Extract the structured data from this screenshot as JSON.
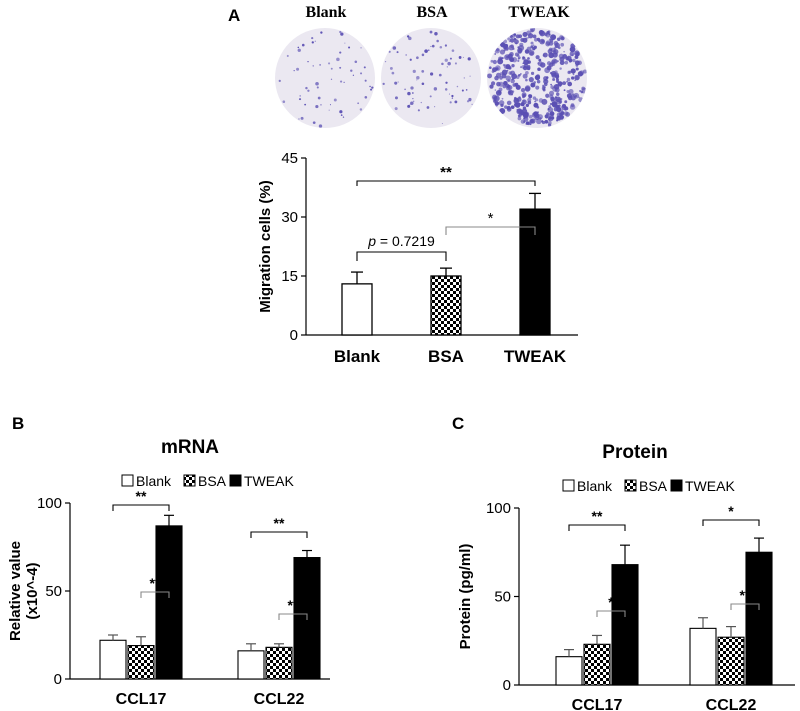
{
  "panels": {
    "a": {
      "letter": "A",
      "well_labels": [
        "Blank",
        "BSA",
        "TWEAK"
      ]
    },
    "b": {
      "letter": "B"
    },
    "c": {
      "letter": "C"
    }
  },
  "colors": {
    "bar_outline": "#000000",
    "blank_fill": "#ffffff",
    "tweak_fill": "#000000",
    "well_bg": "#ebe8f1",
    "stain": "#5a4fb3"
  },
  "chart_data": [
    {
      "type": "bar",
      "title": "",
      "xlabel": "",
      "ylabel": "Migration cells (%)",
      "categories": [
        "Blank",
        "BSA",
        "TWEAK"
      ],
      "fills": [
        "white",
        "checker",
        "black"
      ],
      "values": [
        13,
        15,
        32
      ],
      "errors": [
        3,
        2,
        4
      ],
      "ylim": [
        0,
        45
      ],
      "yticks": [
        "0",
        "15",
        "30",
        "45"
      ],
      "annotations": [
        {
          "label": "**",
          "from": 0,
          "to": 2
        },
        {
          "label": "p = 0.7219",
          "from": 0,
          "to": 1
        },
        {
          "label": "*",
          "from": 1,
          "to": 2
        }
      ]
    },
    {
      "type": "bar",
      "title": "mRNA",
      "xlabel": "",
      "ylabel": "Relative value (x10^-4)",
      "categories": [
        "CCL17",
        "CCL22"
      ],
      "series": [
        {
          "name": "Blank",
          "values": [
            22,
            16
          ],
          "errors": [
            3,
            4
          ]
        },
        {
          "name": "BSA",
          "values": [
            19,
            18
          ],
          "errors": [
            5,
            2
          ]
        },
        {
          "name": "TWEAK",
          "values": [
            87,
            69
          ],
          "errors": [
            6,
            4
          ]
        }
      ],
      "ylim": [
        0,
        100
      ],
      "yticks": [
        "0",
        "50",
        "100"
      ],
      "legend": "top",
      "annotations": [
        {
          "label": "**",
          "group": 0,
          "from": 0,
          "to": 2
        },
        {
          "label": "**",
          "group": 0,
          "from": 1,
          "to": 2
        },
        {
          "label": "**",
          "group": 1,
          "from": 0,
          "to": 2
        },
        {
          "label": "**",
          "group": 1,
          "from": 1,
          "to": 2
        }
      ]
    },
    {
      "type": "bar",
      "title": "Protein",
      "xlabel": "",
      "ylabel": "Protein (pg/ml)",
      "categories": [
        "CCL17",
        "CCL22"
      ],
      "series": [
        {
          "name": "Blank",
          "values": [
            16,
            32
          ],
          "errors": [
            4,
            6
          ]
        },
        {
          "name": "BSA",
          "values": [
            23,
            27
          ],
          "errors": [
            5,
            6
          ]
        },
        {
          "name": "TWEAK",
          "values": [
            68,
            75
          ],
          "errors": [
            11,
            8
          ]
        }
      ],
      "ylim": [
        0,
        100
      ],
      "yticks": [
        "0",
        "50",
        "100"
      ],
      "legend": "top",
      "annotations": [
        {
          "label": "**",
          "group": 0,
          "from": 0,
          "to": 2
        },
        {
          "label": "*",
          "group": 0,
          "from": 1,
          "to": 2
        },
        {
          "label": "*",
          "group": 1,
          "from": 0,
          "to": 2
        },
        {
          "label": "**",
          "group": 1,
          "from": 1,
          "to": 2
        }
      ]
    }
  ]
}
